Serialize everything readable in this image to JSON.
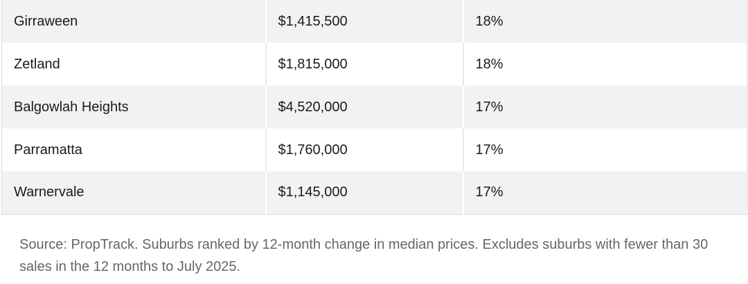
{
  "table": {
    "rows": [
      [
        "Girraween",
        "$1,415,500",
        "18%"
      ],
      [
        "Zetland",
        "$1,815,000",
        "18%"
      ],
      [
        "Balgowlah Heights",
        "$4,520,000",
        "17%"
      ],
      [
        "Parramatta",
        "$1,760,000",
        "17%"
      ],
      [
        "Warnervale",
        "$1,145,000",
        "17%"
      ]
    ]
  },
  "caption": "Source: PropTrack. Suburbs ranked by 12-month change in median prices. Excludes suburbs with fewer than 30 sales in the 12 months to July 2025."
}
